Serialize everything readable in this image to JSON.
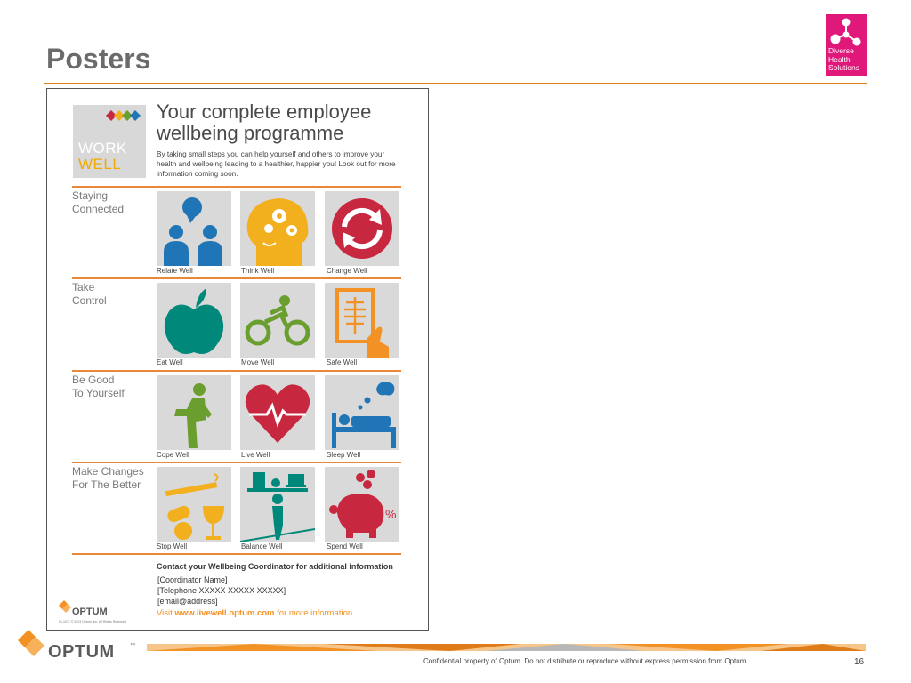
{
  "slide": {
    "title": "Posters",
    "page_number": "16",
    "footer_confidential": "Confidential property of Optum. Do not distribute or reproduce without express permission from Optum.",
    "footer_logo": "OPTUM",
    "footer_logo_tm": "™"
  },
  "dhs_logo": {
    "lines": [
      "Diverse",
      "Health",
      "Solutions"
    ],
    "color": "#e0187a"
  },
  "poster": {
    "logo": {
      "work": "WORK",
      "well": "WELL"
    },
    "heading": "Your complete employee wellbeing programme",
    "intro": "By taking small steps you can help yourself and others to improve your health and wellbeing leading to a healthier, happier you! Look out for more information coming soon.",
    "sections": [
      {
        "label": "Staying\nConnected",
        "tiles": [
          {
            "caption": "Relate Well",
            "icon": "people-talking-icon",
            "color": "#1f75b6"
          },
          {
            "caption": "Think Well",
            "icon": "head-gears-icon",
            "color": "#f2b01e"
          },
          {
            "caption": "Change Well",
            "icon": "refresh-cycle-icon",
            "color": "#c8283f"
          }
        ]
      },
      {
        "label": "Take\nControl",
        "tiles": [
          {
            "caption": "Eat Well",
            "icon": "apple-icon",
            "color": "#00897b"
          },
          {
            "caption": "Move Well",
            "icon": "cyclist-icon",
            "color": "#6a9e2e"
          },
          {
            "caption": "Safe Well",
            "icon": "xray-hand-icon",
            "color": "#f39224"
          }
        ]
      },
      {
        "label": "Be Good\nTo Yourself",
        "tiles": [
          {
            "caption": "Cope Well",
            "icon": "seated-thinker-icon",
            "color": "#6a9e2e"
          },
          {
            "caption": "Live Well",
            "icon": "heart-pulse-icon",
            "color": "#c8283f"
          },
          {
            "caption": "Sleep Well",
            "icon": "sleeping-bed-icon",
            "color": "#1f75b6"
          }
        ]
      },
      {
        "label": "Make Changes\nFor The Better",
        "tiles": [
          {
            "caption": "Stop Well",
            "icon": "pills-cigarette-glass-icon",
            "color": "#f2b01e"
          },
          {
            "caption": "Balance Well",
            "icon": "balance-person-icon",
            "color": "#00897b"
          },
          {
            "caption": "Spend Well",
            "icon": "piggy-bank-icon",
            "color": "#c8283f"
          }
        ]
      }
    ],
    "contact": {
      "heading": "Contact your Wellbeing Coordinator for additional information",
      "lines": [
        "[Coordinator Name]",
        "[Telephone XXXXX XXXXX XXXXX]",
        "[email@address]"
      ],
      "visit_prefix": "Visit ",
      "visit_url": "www.livewell.optum.com",
      "visit_suffix": " for more information"
    },
    "optum_logo": "OPTUM",
    "copyright": "01-1071 © 2013 Optum, Inc. All Rights Reserved."
  },
  "colors": {
    "accent": "#f39224",
    "rule": "#e8883a",
    "title": "#6b6b6b"
  }
}
